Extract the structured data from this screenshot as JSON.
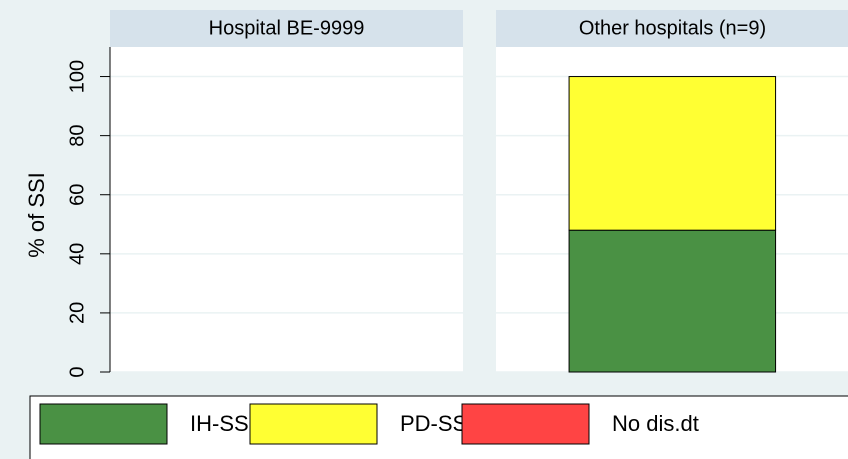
{
  "chart_data": {
    "type": "bar",
    "stacked": true,
    "ylabel": "% of SSI",
    "categories": [
      "Hospital BE-9999",
      "Other hospitals (n=9)"
    ],
    "series": [
      {
        "name": "IH-SSI",
        "color": "#4a9144",
        "values": [
          null,
          48
        ]
      },
      {
        "name": "PD-SSI",
        "color": "#ffff33",
        "values": [
          null,
          52
        ]
      },
      {
        "name": "No dis.dt",
        "color": "#ff4444",
        "values": [
          null,
          0
        ]
      }
    ],
    "ylim": [
      0,
      110
    ],
    "yticks": [
      0,
      20,
      40,
      60,
      80,
      100
    ],
    "grid": true,
    "legend": "bottom"
  }
}
